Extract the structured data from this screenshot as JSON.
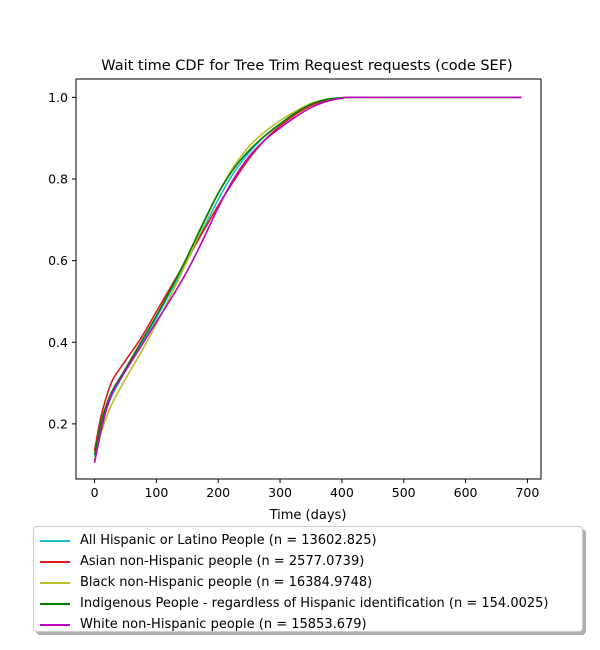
{
  "chart_data": {
    "type": "line",
    "title": "Wait time CDF for Tree Trim Request  requests (code SEF)",
    "xlabel": "Time (days)",
    "ylabel": "",
    "xlim": [
      -30,
      722
    ],
    "ylim": [
      0.065,
      1.045
    ],
    "xticks": [
      0,
      100,
      200,
      300,
      400,
      500,
      600,
      700
    ],
    "yticks": [
      0.2,
      0.4,
      0.6,
      0.8,
      1.0
    ],
    "xtick_labels": [
      "0",
      "100",
      "200",
      "300",
      "400",
      "500",
      "600",
      "700"
    ],
    "ytick_labels": [
      "0.2",
      "0.4",
      "0.6",
      "0.8",
      "1.0"
    ],
    "grid": false,
    "legend_position": "below",
    "series": [
      {
        "name": "All Hispanic or Latino People (n = 13602.825)",
        "color": "#17becf",
        "x": [
          0,
          10,
          20,
          30,
          50,
          75,
          100,
          125,
          150,
          175,
          200,
          225,
          250,
          275,
          300,
          325,
          350,
          375,
          400,
          410,
          450,
          500,
          600,
          690
        ],
        "y": [
          0.12,
          0.19,
          0.24,
          0.275,
          0.33,
          0.395,
          0.46,
          0.53,
          0.6,
          0.675,
          0.75,
          0.815,
          0.865,
          0.905,
          0.935,
          0.962,
          0.983,
          0.995,
          0.999,
          1.0,
          1.0,
          1.0,
          1.0,
          1.0
        ]
      },
      {
        "name": "Asian non-Hispanic people (n = 2577.0739)",
        "color": "#e31a1c",
        "x": [
          0,
          10,
          20,
          30,
          50,
          75,
          100,
          125,
          150,
          175,
          200,
          225,
          250,
          275,
          300,
          325,
          350,
          375,
          400,
          410,
          450,
          500,
          600,
          690
        ],
        "y": [
          0.135,
          0.215,
          0.27,
          0.31,
          0.355,
          0.41,
          0.475,
          0.54,
          0.605,
          0.67,
          0.735,
          0.795,
          0.85,
          0.895,
          0.93,
          0.958,
          0.98,
          0.993,
          0.999,
          1.0,
          1.0,
          1.0,
          1.0,
          1.0
        ]
      },
      {
        "name": "Black non-Hispanic people (n = 16384.9748)",
        "color": "#bcbd22",
        "x": [
          0,
          10,
          20,
          30,
          50,
          75,
          100,
          125,
          150,
          175,
          200,
          225,
          250,
          275,
          300,
          325,
          350,
          375,
          400,
          410,
          450,
          500,
          600,
          690
        ],
        "y": [
          0.11,
          0.175,
          0.22,
          0.255,
          0.31,
          0.375,
          0.445,
          0.52,
          0.6,
          0.685,
          0.765,
          0.83,
          0.88,
          0.915,
          0.943,
          0.966,
          0.985,
          0.995,
          0.999,
          1.0,
          1.0,
          1.0,
          1.0,
          1.0
        ]
      },
      {
        "name": "Indigenous People - regardless of Hispanic identification (n = 154.0025)",
        "color": "#008000",
        "x": [
          0,
          10,
          20,
          30,
          50,
          75,
          100,
          125,
          150,
          175,
          200,
          225,
          250,
          275,
          300,
          325,
          350,
          375,
          400,
          410,
          450,
          500,
          600,
          690
        ],
        "y": [
          0.125,
          0.2,
          0.25,
          0.285,
          0.335,
          0.4,
          0.465,
          0.535,
          0.61,
          0.69,
          0.765,
          0.825,
          0.87,
          0.905,
          0.935,
          0.962,
          0.983,
          0.995,
          0.999,
          1.0,
          1.0,
          1.0,
          1.0,
          1.0
        ]
      },
      {
        "name": "White non-Hispanic people (n = 15853.679)",
        "color": "#c000c0",
        "x": [
          0,
          10,
          20,
          30,
          50,
          75,
          100,
          125,
          150,
          175,
          200,
          225,
          250,
          275,
          300,
          325,
          350,
          375,
          400,
          410,
          450,
          500,
          600,
          690
        ],
        "y": [
          0.105,
          0.18,
          0.24,
          0.28,
          0.33,
          0.39,
          0.45,
          0.51,
          0.575,
          0.65,
          0.73,
          0.8,
          0.855,
          0.895,
          0.925,
          0.952,
          0.975,
          0.99,
          0.998,
          1.0,
          1.0,
          1.0,
          1.0,
          1.0
        ]
      }
    ]
  }
}
